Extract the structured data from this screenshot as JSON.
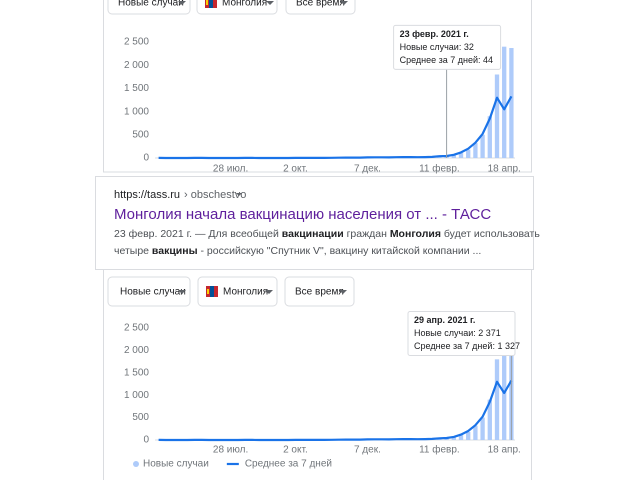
{
  "filters": [
    "Новые случаи",
    "Монголия",
    "Все время"
  ],
  "search_result": {
    "url": "https://tass.ru",
    "breadcrumb": "› obschestvo",
    "title": "Монголия начала вакцинацию населения от ... - ТАСС",
    "snippet": [
      [
        {
          "text": "23 февр. 2021 г. — Для всеобщей ",
          "bold": false
        },
        {
          "text": "вакцинации",
          "bold": true
        },
        {
          "text": " граждан ",
          "bold": false
        },
        {
          "text": "Монголия",
          "bold": true
        },
        {
          "text": " будет использовать",
          "bold": false
        }
      ],
      [
        {
          "text": "четыре ",
          "bold": false
        },
        {
          "text": "вакцины",
          "bold": true
        },
        {
          "text": " - российскую \"Спутник V\", вакцину китайской компании ...",
          "bold": false
        }
      ]
    ]
  },
  "chart_data": [
    {
      "type": "combo",
      "categories": [
        null,
        null,
        null,
        null,
        null,
        null,
        null,
        null,
        null,
        null,
        "28 июл.",
        null,
        null,
        null,
        null,
        null,
        null,
        null,
        null,
        "2 окт.",
        null,
        null,
        null,
        null,
        null,
        null,
        null,
        null,
        null,
        "7 дек.",
        null,
        null,
        null,
        null,
        null,
        null,
        null,
        null,
        null,
        "11 февр.",
        null,
        null,
        null,
        null,
        null,
        null,
        null,
        null,
        "18 апр.",
        null
      ],
      "series": [
        {
          "name": "Новые случаи",
          "type": "bar",
          "color": "#aecbfa",
          "values": [
            3,
            0,
            1,
            2,
            0,
            4,
            1,
            0,
            2,
            1,
            0,
            1,
            3,
            2,
            0,
            1,
            2,
            0,
            1,
            2,
            3,
            1,
            2,
            4,
            6,
            10,
            8,
            5,
            12,
            20,
            18,
            14,
            10,
            22,
            25,
            18,
            15,
            20,
            28,
            30,
            32,
            60,
            110,
            180,
            320,
            500,
            900,
            1800,
            2400,
            2371
          ]
        },
        {
          "name": "Среднее за 7 дней",
          "type": "line",
          "color": "#1a73e8",
          "values": [
            2,
            1,
            1,
            1,
            1,
            2,
            2,
            1,
            1,
            1,
            1,
            1,
            2,
            2,
            1,
            1,
            1,
            1,
            1,
            2,
            2,
            2,
            2,
            3,
            5,
            7,
            8,
            8,
            9,
            14,
            16,
            15,
            14,
            17,
            20,
            19,
            18,
            19,
            24,
            38,
            44,
            70,
            120,
            200,
            330,
            520,
            850,
            1300,
            1050,
            1327
          ]
        }
      ],
      "ylim": [
        0,
        2600
      ],
      "yticks": [
        0,
        {
          "value": 500,
          "label": "500"
        },
        {
          "value": 1000,
          "label": "1 000"
        },
        {
          "value": 1500,
          "label": "1 500"
        },
        {
          "value": 2000,
          "label": "2 000"
        },
        {
          "value": 2500,
          "label": "2 500"
        }
      ],
      "grid": false,
      "legend": false,
      "tooltip": {
        "date": "23 февр. 2021 г.",
        "lines": [
          "Новые случаи: 32",
          "Среднее за 7 дней: 44"
        ]
      }
    },
    {
      "type": "combo",
      "categories": [
        null,
        null,
        null,
        null,
        null,
        null,
        null,
        null,
        null,
        null,
        "28 июл.",
        null,
        null,
        null,
        null,
        null,
        null,
        null,
        null,
        "2 окт.",
        null,
        null,
        null,
        null,
        null,
        null,
        null,
        null,
        null,
        "7 дек.",
        null,
        null,
        null,
        null,
        null,
        null,
        null,
        null,
        null,
        "11 февр.",
        null,
        null,
        null,
        null,
        null,
        null,
        null,
        null,
        "18 апр.",
        null
      ],
      "series": [
        {
          "name": "Новые случаи",
          "type": "bar",
          "color": "#aecbfa",
          "values": [
            3,
            0,
            1,
            2,
            0,
            4,
            1,
            0,
            2,
            1,
            0,
            1,
            3,
            2,
            0,
            1,
            2,
            0,
            1,
            2,
            3,
            1,
            2,
            4,
            6,
            10,
            8,
            5,
            12,
            20,
            18,
            14,
            10,
            22,
            25,
            18,
            15,
            20,
            28,
            30,
            32,
            60,
            110,
            180,
            320,
            500,
            900,
            1800,
            2400,
            2371
          ]
        },
        {
          "name": "Среднее за 7 дней",
          "type": "line",
          "color": "#1a73e8",
          "values": [
            2,
            1,
            1,
            1,
            1,
            2,
            2,
            1,
            1,
            1,
            1,
            1,
            2,
            2,
            1,
            1,
            1,
            1,
            1,
            2,
            2,
            2,
            2,
            3,
            5,
            7,
            8,
            8,
            9,
            14,
            16,
            15,
            14,
            17,
            20,
            19,
            18,
            19,
            24,
            38,
            44,
            70,
            120,
            200,
            330,
            520,
            850,
            1300,
            1050,
            1327
          ]
        }
      ],
      "ylim": [
        0,
        2600
      ],
      "yticks": [
        0,
        {
          "value": 500,
          "label": "500"
        },
        {
          "value": 1000,
          "label": "1 000"
        },
        {
          "value": 1500,
          "label": "1 500"
        },
        {
          "value": 2000,
          "label": "2 000"
        },
        {
          "value": 2500,
          "label": "2 500"
        }
      ],
      "grid": false,
      "legend": true,
      "tooltip": {
        "date": "29 апр. 2021 г.",
        "lines": [
          "Новые случаи: 2 371",
          "Среднее за 7 дней: 1 327"
        ]
      }
    }
  ]
}
